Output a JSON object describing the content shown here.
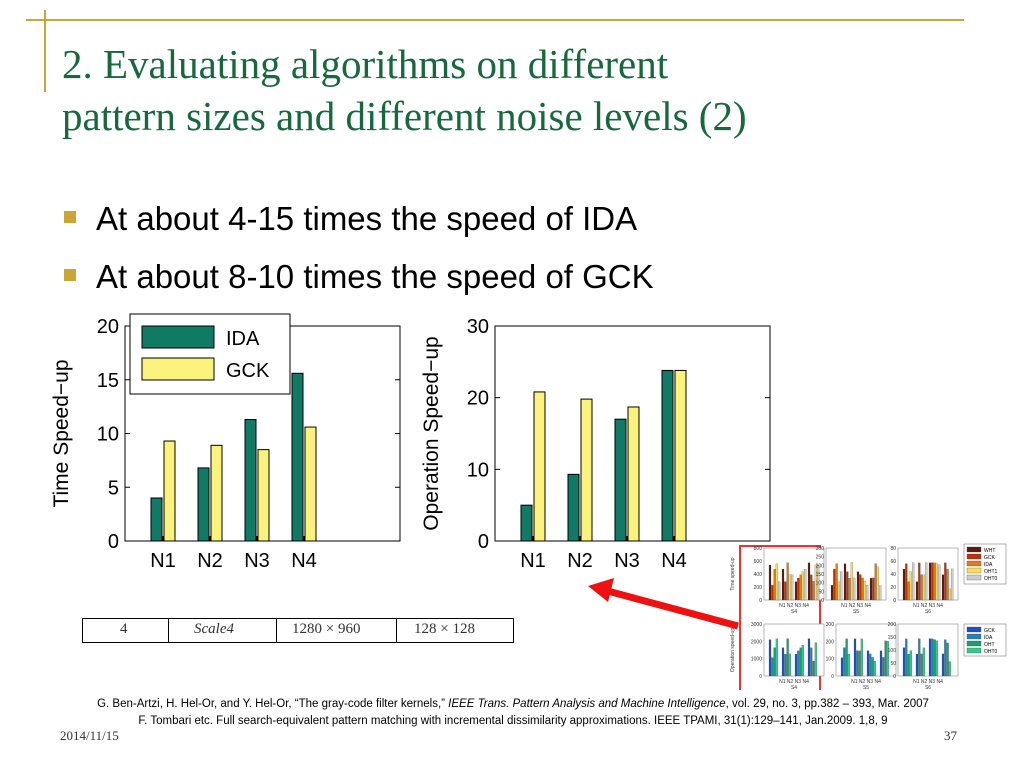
{
  "slide": {
    "title_line1": "2. Evaluating algorithms on different",
    "title_line2": "pattern sizes and different noise levels (2)",
    "bullets": [
      "At about 4-15 times the speed of IDA",
      "At about 8-10 times the speed of GCK"
    ],
    "footer_date": "2014/11/15",
    "page_number": "37",
    "references": [
      {
        "pre": "G. Ben-Artzi, H. Hel-Or, and Y. Hel-Or, “The gray-code filter kernels,” ",
        "journal": "IEEE Trans. Pattern Analysis and Machine Intelligence",
        "post": ", vol. 29, no. 3,  pp.382 – 393, Mar. 2007"
      },
      {
        "pre": "F. Tombari etc. Full search-equivalent pattern matching with incremental dissimilarity approximations. IEEE TPAMI, 31(1):129–141, Jan.2009. 1,8, 9",
        "journal": "",
        "post": ""
      }
    ],
    "table_row": [
      "4",
      "Scale4",
      "1280 × 960",
      "128 × 128"
    ]
  },
  "colors": {
    "title": "#17683f",
    "frame": "#c9a636",
    "bullet_marker": "#c9a636",
    "ida": "#117a65",
    "gck": "#fbf27c",
    "arrow": "#ee1111",
    "highlight": "#ee3333"
  },
  "chart_data": [
    {
      "type": "bar",
      "categories": [
        "N1",
        "N2",
        "N3",
        "N4"
      ],
      "series": [
        {
          "name": "IDA",
          "values": [
            4.0,
            6.8,
            11.3,
            15.6
          ]
        },
        {
          "name": "GCK",
          "values": [
            9.3,
            8.9,
            8.5,
            10.6
          ]
        }
      ],
      "ylabel": "Time Speed−up",
      "ylim": [
        0,
        20
      ],
      "yticks": [
        0,
        5,
        10,
        15,
        20
      ],
      "legend": "top-left"
    },
    {
      "type": "bar",
      "categories": [
        "N1",
        "N2",
        "N3",
        "N4"
      ],
      "series": [
        {
          "name": "IDA",
          "values": [
            5.0,
            9.3,
            17.0,
            23.8
          ]
        },
        {
          "name": "GCK",
          "values": [
            20.8,
            19.8,
            18.7,
            23.8
          ]
        }
      ],
      "ylabel": "Operation Speed−up",
      "ylim": [
        0,
        30
      ],
      "yticks": [
        0,
        10,
        20,
        30
      ],
      "legend": "none"
    }
  ],
  "thumbnail": {
    "panels": [
      {
        "label": "S4",
        "max": "800",
        "ticks": [
          "800",
          "600",
          "400",
          "200",
          "0"
        ],
        "ylabel": "Time speed-up"
      },
      {
        "label": "S5",
        "max": "300",
        "ticks": [
          "300",
          "250",
          "200",
          "150",
          "100",
          "50",
          "0"
        ]
      },
      {
        "label": "S6",
        "max": "80",
        "ticks": [
          "80",
          "60",
          "40",
          "20",
          "0"
        ]
      },
      {
        "label": "S4",
        "max": "3000",
        "ticks": [
          "3000",
          "2000",
          "1000",
          "0"
        ],
        "ylabel": "Operation speed-up"
      },
      {
        "label": "S5",
        "max": "300",
        "ticks": [
          "300",
          "200",
          "100",
          "0"
        ]
      },
      {
        "label": "S6",
        "max": "200",
        "ticks": [
          "200",
          "150",
          "100",
          "50",
          "0"
        ]
      }
    ],
    "xcats": "N1 N2 N3 N4",
    "legend_top": [
      "WHT",
      "GCK",
      "IDA",
      "OHT1",
      "OHT0"
    ],
    "legend_bottom": [
      "GCK",
      "IDA",
      "OHT",
      "OHT0"
    ]
  }
}
